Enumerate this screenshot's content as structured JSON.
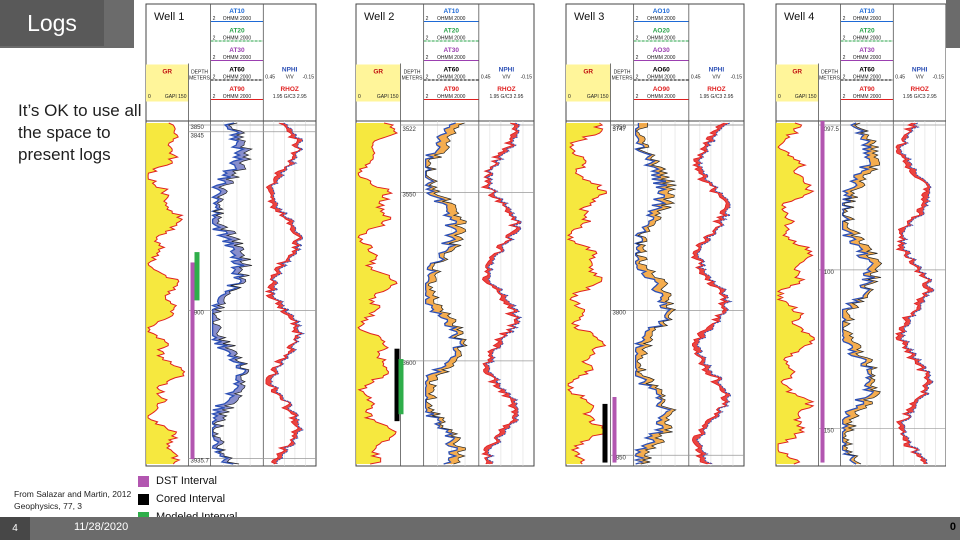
{
  "slide": {
    "title": "Logs",
    "body": "It’s OK to use all the space to present logs",
    "citation_line1": "From Salazar and Martin, 2012",
    "citation_line2": "Geophysics, 77, 3",
    "slide_number": "4",
    "date": "11/28/2020",
    "right_number": "0"
  },
  "legend": [
    {
      "label": "DST Interval",
      "color": "#b256b0"
    },
    {
      "label": "Cored Interval",
      "color": "#000000"
    },
    {
      "label": "Modeled Interval",
      "color": "#2fae4a"
    }
  ],
  "colors": {
    "gr_fill": "#f5e52a",
    "resistivity_fill": "#f4a43c",
    "neutron_density_fill": "#e7231f",
    "blue_curve": "#2b4fb5",
    "purple_fill": "#7b82c6"
  },
  "wells": [
    {
      "name": "Well 1",
      "res_curves": [
        {
          "label": "AT10",
          "color": "#1e6ad6"
        },
        {
          "label": "AT20",
          "color": "#2aa34a"
        },
        {
          "label": "AT30",
          "color": "#9b3fb0"
        },
        {
          "label": "AT60",
          "color": "#000000"
        },
        {
          "label": "AT90",
          "color": "#e02020"
        }
      ],
      "res_unit": "OHMM 2000",
      "res_min": "2",
      "nphi": {
        "label": "NPHI",
        "scale_left": "0.45",
        "unit": "V/V",
        "scale_right": "-0.15"
      },
      "rhoz": {
        "label": "RHOZ",
        "scale": "1.95 G/C3 2.95"
      },
      "gr": {
        "label": "GR",
        "scale": "GAPI 150",
        "min": "0"
      },
      "depth_label": "DEPTH METERS",
      "depths": [
        "3845",
        "3850",
        "3900",
        "3935.7"
      ]
    },
    {
      "name": "Well 2",
      "res_curves": [
        {
          "label": "AT10",
          "color": "#1e6ad6"
        },
        {
          "label": "AT20",
          "color": "#2aa34a"
        },
        {
          "label": "AT30",
          "color": "#9b3fb0"
        },
        {
          "label": "AT60",
          "color": "#000000"
        },
        {
          "label": "AT90",
          "color": "#e02020"
        }
      ],
      "res_unit": "OHMM 2000",
      "res_min": "2",
      "nphi": {
        "label": "NPHI",
        "scale_left": "0.45",
        "unit": "V/V",
        "scale_right": "-0.15"
      },
      "rhoz": {
        "label": "RHOZ",
        "scale": "1.95 G/C3 2.95"
      },
      "gr": {
        "label": "GR",
        "scale": "GAPI 150",
        "min": "0"
      },
      "depth_label": "DEPTH METERS",
      "depths": [
        "3522",
        "3550",
        "3600"
      ]
    },
    {
      "name": "Well 3",
      "res_curves": [
        {
          "label": "AO10",
          "color": "#1e6ad6"
        },
        {
          "label": "AO20",
          "color": "#2aa34a"
        },
        {
          "label": "AO30",
          "color": "#9b3fb0"
        },
        {
          "label": "AO60",
          "color": "#000000"
        },
        {
          "label": "AO90",
          "color": "#e02020"
        }
      ],
      "res_unit": "OHMM 2000",
      "res_min": "2",
      "nphi": {
        "label": "NPHI",
        "scale_left": "0.45",
        "unit": "V/V",
        "scale_right": "-0.15"
      },
      "rhoz": {
        "label": "RHOZ",
        "scale": "1.95 G/C3 2.95"
      },
      "gr": {
        "label": "GR",
        "scale": "GAPI 150",
        "min": "0"
      },
      "depth_label": "DEPTH METERS",
      "depths": [
        "3747",
        "3750",
        "3800",
        "3850"
      ]
    },
    {
      "name": "Well 4",
      "res_curves": [
        {
          "label": "AT10",
          "color": "#1e6ad6"
        },
        {
          "label": "AT20",
          "color": "#2aa34a"
        },
        {
          "label": "AT30",
          "color": "#9b3fb0"
        },
        {
          "label": "AT60",
          "color": "#000000"
        },
        {
          "label": "AT90",
          "color": "#e02020"
        }
      ],
      "res_unit": "OHMM 2000",
      "res_min": "2",
      "nphi": {
        "label": "NPHI",
        "scale_left": "0.45",
        "unit": "V/V",
        "scale_right": "-0.15"
      },
      "rhoz": {
        "label": "RHOZ",
        "scale": "1.95 G/C3 2.95"
      },
      "gr": {
        "label": "GR",
        "scale": "GAPI 150",
        "min": "0"
      },
      "depth_label": "DEPTH METERS",
      "depths": [
        "4097.5",
        "4100",
        "4150"
      ]
    }
  ]
}
